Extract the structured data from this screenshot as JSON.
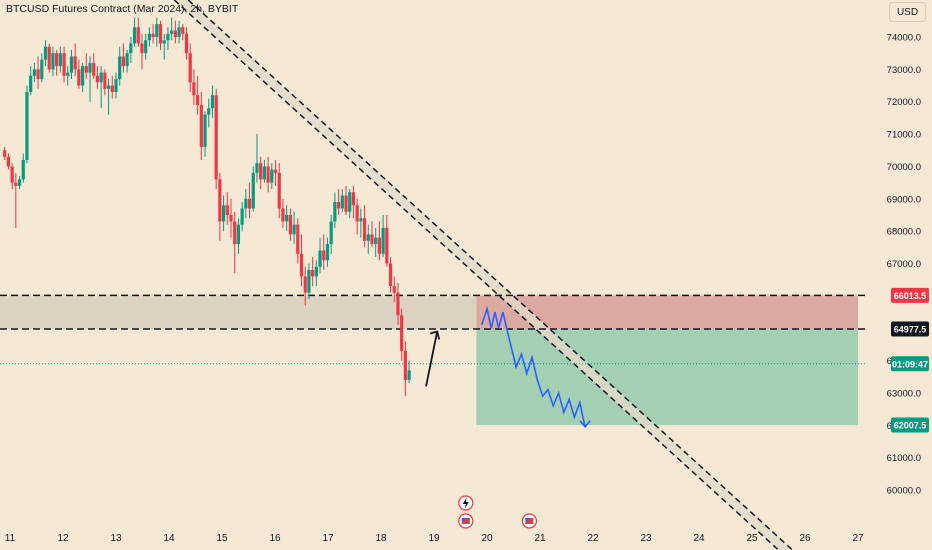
{
  "header": {
    "title": "BTCUSD Futures Contract (Mar 2024), 2h, BYBIT"
  },
  "price_scale": {
    "currency_label": "USD"
  },
  "chart_data": {
    "type": "candlestick",
    "title": "BTCUSD Futures Contract (Mar 2024), 2h, BYBIT",
    "x_tick_labels": [
      "11",
      "12",
      "13",
      "14",
      "15",
      "16",
      "17",
      "18",
      "19",
      "20",
      "21",
      "22",
      "23",
      "24",
      "25",
      "26",
      "27"
    ],
    "y_tick_labels": [
      60000,
      61000,
      62000,
      63000,
      64000,
      67000,
      68000,
      69000,
      70000,
      71000,
      72000,
      73000,
      74000
    ],
    "ylim": [
      59900,
      74600
    ],
    "price_badges": [
      {
        "label": "66013.5",
        "value": 66013.5,
        "color": "#f23645"
      },
      {
        "label": "64977.5",
        "value": 64977.5,
        "color": "#131722"
      },
      {
        "label": "01:09:47",
        "value": 63900,
        "color": "#089981"
      },
      {
        "label": "62007.5",
        "value": 62007.5,
        "color": "#089981"
      }
    ],
    "colors": {
      "up": "#089981",
      "down": "#f23645",
      "background": "#f5e8d4",
      "projection": "#2962ff",
      "stop_zone": "#dba9a0",
      "target_zone": "#a3cfb3",
      "demand_zone": "#ddd3c3"
    },
    "candles": [
      [
        10.9,
        70500,
        70600,
        70200,
        70300
      ],
      [
        10.97,
        70300,
        70400,
        69900,
        70000
      ],
      [
        11.04,
        70000,
        70100,
        69300,
        69500
      ],
      [
        11.11,
        69500,
        69800,
        68100,
        69400
      ],
      [
        11.18,
        69400,
        69700,
        69300,
        69600
      ],
      [
        11.25,
        69600,
        70400,
        69500,
        70200
      ],
      [
        11.32,
        70200,
        72500,
        70100,
        72300
      ],
      [
        11.39,
        72300,
        73100,
        72200,
        72800
      ],
      [
        11.46,
        72800,
        73200,
        72600,
        73000
      ],
      [
        11.53,
        73000,
        73400,
        72400,
        72700
      ],
      [
        11.6,
        72700,
        73500,
        72600,
        73300
      ],
      [
        11.67,
        73300,
        73900,
        73100,
        73700
      ],
      [
        11.74,
        73700,
        73800,
        72900,
        73000
      ],
      [
        11.81,
        73000,
        73700,
        72800,
        73500
      ],
      [
        11.88,
        73500,
        73600,
        72800,
        73100
      ],
      [
        11.95,
        73100,
        73700,
        72900,
        73500
      ],
      [
        12.02,
        73500,
        73700,
        72600,
        72800
      ],
      [
        12.09,
        72800,
        73100,
        72500,
        72900
      ],
      [
        12.16,
        72900,
        73600,
        72700,
        73400
      ],
      [
        12.23,
        73400,
        73800,
        72800,
        73000
      ],
      [
        12.3,
        73000,
        73300,
        72400,
        72500
      ],
      [
        12.37,
        72500,
        73200,
        72300,
        73100
      ],
      [
        12.44,
        73100,
        73500,
        72700,
        72900
      ],
      [
        12.51,
        72900,
        73400,
        72000,
        73200
      ],
      [
        12.58,
        73200,
        73500,
        72700,
        72800
      ],
      [
        12.65,
        72800,
        73100,
        72400,
        72600
      ],
      [
        12.72,
        72600,
        73100,
        71800,
        72900
      ],
      [
        12.79,
        72900,
        73000,
        72200,
        72400
      ],
      [
        12.86,
        72400,
        72700,
        71600,
        72500
      ],
      [
        12.93,
        72500,
        72800,
        72100,
        72300
      ],
      [
        13.0,
        72300,
        72900,
        72100,
        72700
      ],
      [
        13.07,
        72700,
        73700,
        72500,
        73400
      ],
      [
        13.14,
        73400,
        73800,
        72900,
        73100
      ],
      [
        13.21,
        73100,
        73600,
        72900,
        73500
      ],
      [
        13.28,
        73500,
        74000,
        73200,
        73800
      ],
      [
        13.35,
        73800,
        74600,
        73700,
        74300
      ],
      [
        13.42,
        74300,
        74600,
        73700,
        73800
      ],
      [
        13.49,
        73800,
        74100,
        73000,
        73500
      ],
      [
        13.56,
        73500,
        74100,
        73300,
        73900
      ],
      [
        13.63,
        73900,
        74300,
        73700,
        74100
      ],
      [
        13.7,
        74100,
        74400,
        73800,
        74000
      ],
      [
        13.77,
        74000,
        74600,
        73700,
        74400
      ],
      [
        13.84,
        74400,
        74500,
        73600,
        73800
      ],
      [
        13.91,
        73800,
        74100,
        73300,
        73900
      ],
      [
        13.98,
        73900,
        74300,
        73600,
        74100
      ],
      [
        14.05,
        74100,
        74600,
        73900,
        74200
      ],
      [
        14.12,
        74200,
        74500,
        73800,
        74000
      ],
      [
        14.19,
        74000,
        74500,
        73800,
        74300
      ],
      [
        14.26,
        74300,
        74400,
        73900,
        74100
      ],
      [
        14.33,
        74100,
        74300,
        73300,
        73500
      ],
      [
        14.4,
        73500,
        73800,
        72300,
        72600
      ],
      [
        14.47,
        72600,
        73000,
        71900,
        72200
      ],
      [
        14.54,
        72200,
        72800,
        71600,
        71900
      ],
      [
        14.61,
        71900,
        72300,
        70200,
        70600
      ],
      [
        14.68,
        70600,
        71700,
        70300,
        71600
      ],
      [
        14.75,
        71600,
        72100,
        71200,
        71800
      ],
      [
        14.82,
        71800,
        72500,
        71500,
        72200
      ],
      [
        14.89,
        72200,
        72400,
        69300,
        69600
      ],
      [
        14.96,
        69600,
        69800,
        67700,
        68300
      ],
      [
        15.03,
        68300,
        69100,
        68000,
        68800
      ],
      [
        15.1,
        68800,
        69200,
        68200,
        68500
      ],
      [
        15.17,
        68500,
        69000,
        67800,
        68300
      ],
      [
        15.24,
        68300,
        68600,
        66700,
        67600
      ],
      [
        15.31,
        67600,
        68400,
        67300,
        68200
      ],
      [
        15.38,
        68200,
        68900,
        68000,
        68700
      ],
      [
        15.45,
        68700,
        69300,
        68400,
        69000
      ],
      [
        15.52,
        69000,
        69500,
        68400,
        68700
      ],
      [
        15.59,
        68700,
        70000,
        68600,
        69800
      ],
      [
        15.66,
        69800,
        71000,
        69500,
        70100
      ],
      [
        15.73,
        70100,
        70300,
        69300,
        69600
      ],
      [
        15.8,
        69600,
        70200,
        69500,
        70000
      ],
      [
        15.87,
        70000,
        70300,
        69200,
        69500
      ],
      [
        15.94,
        69500,
        70100,
        69300,
        69900
      ],
      [
        16.01,
        69900,
        70200,
        69400,
        69800
      ],
      [
        16.08,
        69800,
        70100,
        68400,
        68700
      ],
      [
        16.15,
        68700,
        69000,
        68100,
        68300
      ],
      [
        16.22,
        68300,
        68800,
        68000,
        68500
      ],
      [
        16.29,
        68500,
        68700,
        67700,
        67900
      ],
      [
        16.36,
        67900,
        68600,
        67600,
        68200
      ],
      [
        16.43,
        68200,
        68400,
        67000,
        67300
      ],
      [
        16.5,
        67300,
        67900,
        66300,
        66600
      ],
      [
        16.57,
        66600,
        66900,
        65700,
        66100
      ],
      [
        16.64,
        66100,
        67000,
        65900,
        66800
      ],
      [
        16.71,
        66800,
        67200,
        66300,
        66600
      ],
      [
        16.78,
        66600,
        67100,
        66300,
        66900
      ],
      [
        16.85,
        66900,
        67800,
        66700,
        67400
      ],
      [
        16.92,
        67400,
        67900,
        66800,
        67100
      ],
      [
        16.99,
        67100,
        67800,
        66900,
        67600
      ],
      [
        17.06,
        67600,
        68500,
        67300,
        68300
      ],
      [
        17.13,
        68300,
        69200,
        68100,
        68900
      ],
      [
        17.2,
        68900,
        69300,
        68500,
        68700
      ],
      [
        17.27,
        68700,
        69300,
        68600,
        69100
      ],
      [
        17.34,
        69100,
        69400,
        68500,
        68600
      ],
      [
        17.41,
        68600,
        69300,
        68400,
        69200
      ],
      [
        17.48,
        69200,
        69400,
        68400,
        68800
      ],
      [
        17.55,
        68800,
        69000,
        67900,
        68300
      ],
      [
        17.62,
        68300,
        68700,
        67800,
        68400
      ],
      [
        17.69,
        68400,
        68800,
        67500,
        67700
      ],
      [
        17.76,
        67700,
        68200,
        67300,
        67900
      ],
      [
        17.83,
        67900,
        68300,
        67500,
        67600
      ],
      [
        17.9,
        67600,
        68100,
        67200,
        67800
      ],
      [
        17.97,
        67800,
        68300,
        67100,
        67300
      ],
      [
        18.04,
        67300,
        68500,
        67200,
        68100
      ],
      [
        18.11,
        68100,
        68500,
        66900,
        67000
      ],
      [
        18.18,
        67000,
        67200,
        66100,
        66300
      ],
      [
        18.25,
        66300,
        66600,
        65800,
        66100
      ],
      [
        18.32,
        66100,
        66400,
        65100,
        65400
      ],
      [
        18.39,
        65400,
        65600,
        64000,
        64300
      ],
      [
        18.46,
        64300,
        64600,
        62900,
        63400
      ],
      [
        18.53,
        63400,
        64000,
        63300,
        63700
      ]
    ],
    "x_anchor_days": [
      [
        11,
        10
      ],
      [
        12,
        63
      ],
      [
        13,
        117
      ],
      [
        14,
        170
      ],
      [
        15,
        223
      ],
      [
        16,
        276
      ],
      [
        17,
        329
      ],
      [
        18,
        382
      ],
      [
        19,
        434
      ],
      [
        20,
        487
      ],
      [
        21,
        540
      ],
      [
        22,
        593
      ],
      [
        23,
        646
      ],
      [
        24,
        698
      ],
      [
        25,
        752
      ],
      [
        26,
        804
      ],
      [
        27,
        857
      ]
    ]
  }
}
